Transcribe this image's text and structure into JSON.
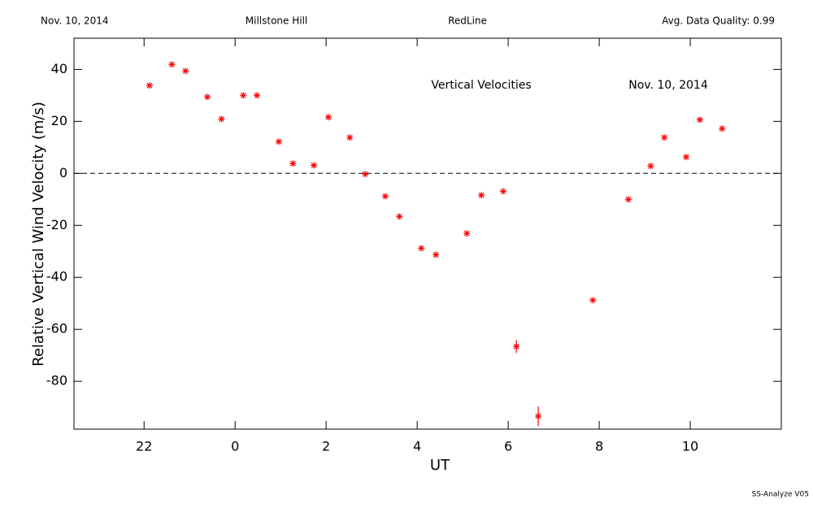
{
  "chart_data": {
    "type": "scatter",
    "header": {
      "date": "Nov. 10, 2014",
      "site": "Millstone Hill",
      "instrument": "RedLine",
      "quality": "Avg. Data Quality: 0.99"
    },
    "annotations": [
      "Vertical Velocities",
      "Nov. 10, 2014"
    ],
    "footer": "SS-Analyze V05",
    "xlabel": "UT",
    "ylabel": "Relative Vertical Wind Velocity (m/s)",
    "xlim": [
      -3.54,
      12
    ],
    "ylim": [
      -98.4,
      52
    ],
    "xticks": [
      {
        "value": -2,
        "label": "22"
      },
      0,
      2,
      4,
      6,
      8,
      10
    ],
    "yticks": [
      -80,
      -60,
      -40,
      -20,
      0,
      20,
      40
    ],
    "zero_line": 0,
    "color": "#ff0000",
    "x": [
      -1.88,
      -1.39,
      -1.09,
      -0.61,
      -0.3,
      0.18,
      0.48,
      0.96,
      1.27,
      1.73,
      2.05,
      2.52,
      2.86,
      3.3,
      3.61,
      4.09,
      4.41,
      5.09,
      5.41,
      5.89,
      6.18,
      6.66,
      7.86,
      8.64,
      9.13,
      9.43,
      9.91,
      10.21,
      10.7
    ],
    "values": [
      33.8,
      41.9,
      39.4,
      29.4,
      20.9,
      30,
      30,
      12.2,
      3.8,
      3.1,
      21.6,
      13.8,
      -0.3,
      -8.8,
      -16.6,
      -28.8,
      -31.3,
      -23.1,
      -8.4,
      -6.9,
      -66.6,
      -93.4,
      -48.8,
      -10,
      2.8,
      13.8,
      6.3,
      20.6,
      17.2
    ],
    "errors": [
      0.5,
      0.5,
      0.5,
      0.5,
      0.5,
      0.5,
      0.5,
      0.5,
      0.5,
      0.5,
      0.5,
      0.5,
      0.5,
      0.5,
      0.5,
      0.5,
      0.5,
      0.5,
      0.5,
      0.5,
      2.5,
      3.8,
      0.5,
      0.5,
      0.5,
      0.5,
      0.5,
      0.5,
      0.5
    ]
  }
}
